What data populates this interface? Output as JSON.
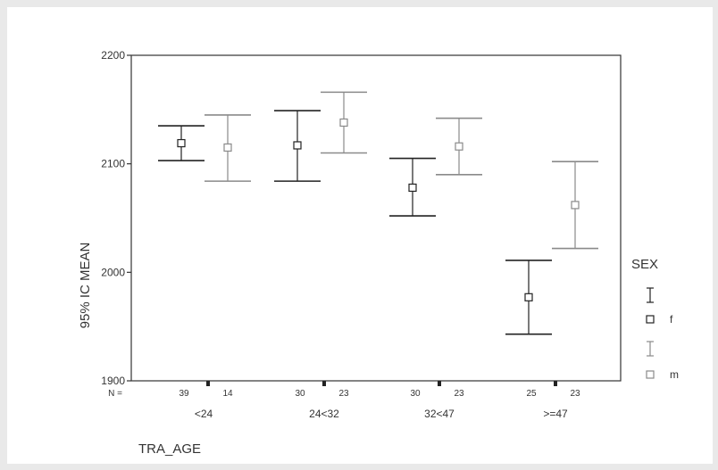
{
  "chart_data": {
    "type": "errorbar",
    "ylabel": "95% IC MEAN",
    "xlabel": "TRA_AGE",
    "ylim": [
      1900,
      2200
    ],
    "yticks": [
      1900,
      2000,
      2100,
      2200
    ],
    "categories": [
      "<24",
      "24<32",
      "32<47",
      ">=47"
    ],
    "n_label": "N =",
    "legend_title": "SEX",
    "colors": {
      "f": "#222222",
      "m": "#8a8a8a"
    },
    "series": [
      {
        "name": "f",
        "n": [
          "39",
          "30",
          "30",
          "25"
        ],
        "mean": [
          2119,
          2117,
          2078,
          1977
        ],
        "lower": [
          2103,
          2084,
          2052,
          1943
        ],
        "upper": [
          2135,
          2149,
          2105,
          2011
        ]
      },
      {
        "name": "m",
        "n": [
          "14",
          "23",
          "23",
          "23"
        ],
        "mean": [
          2115,
          2138,
          2116,
          2062
        ],
        "lower": [
          2084,
          2110,
          2090,
          2022
        ],
        "upper": [
          2145,
          2166,
          2142,
          2102
        ]
      }
    ]
  }
}
